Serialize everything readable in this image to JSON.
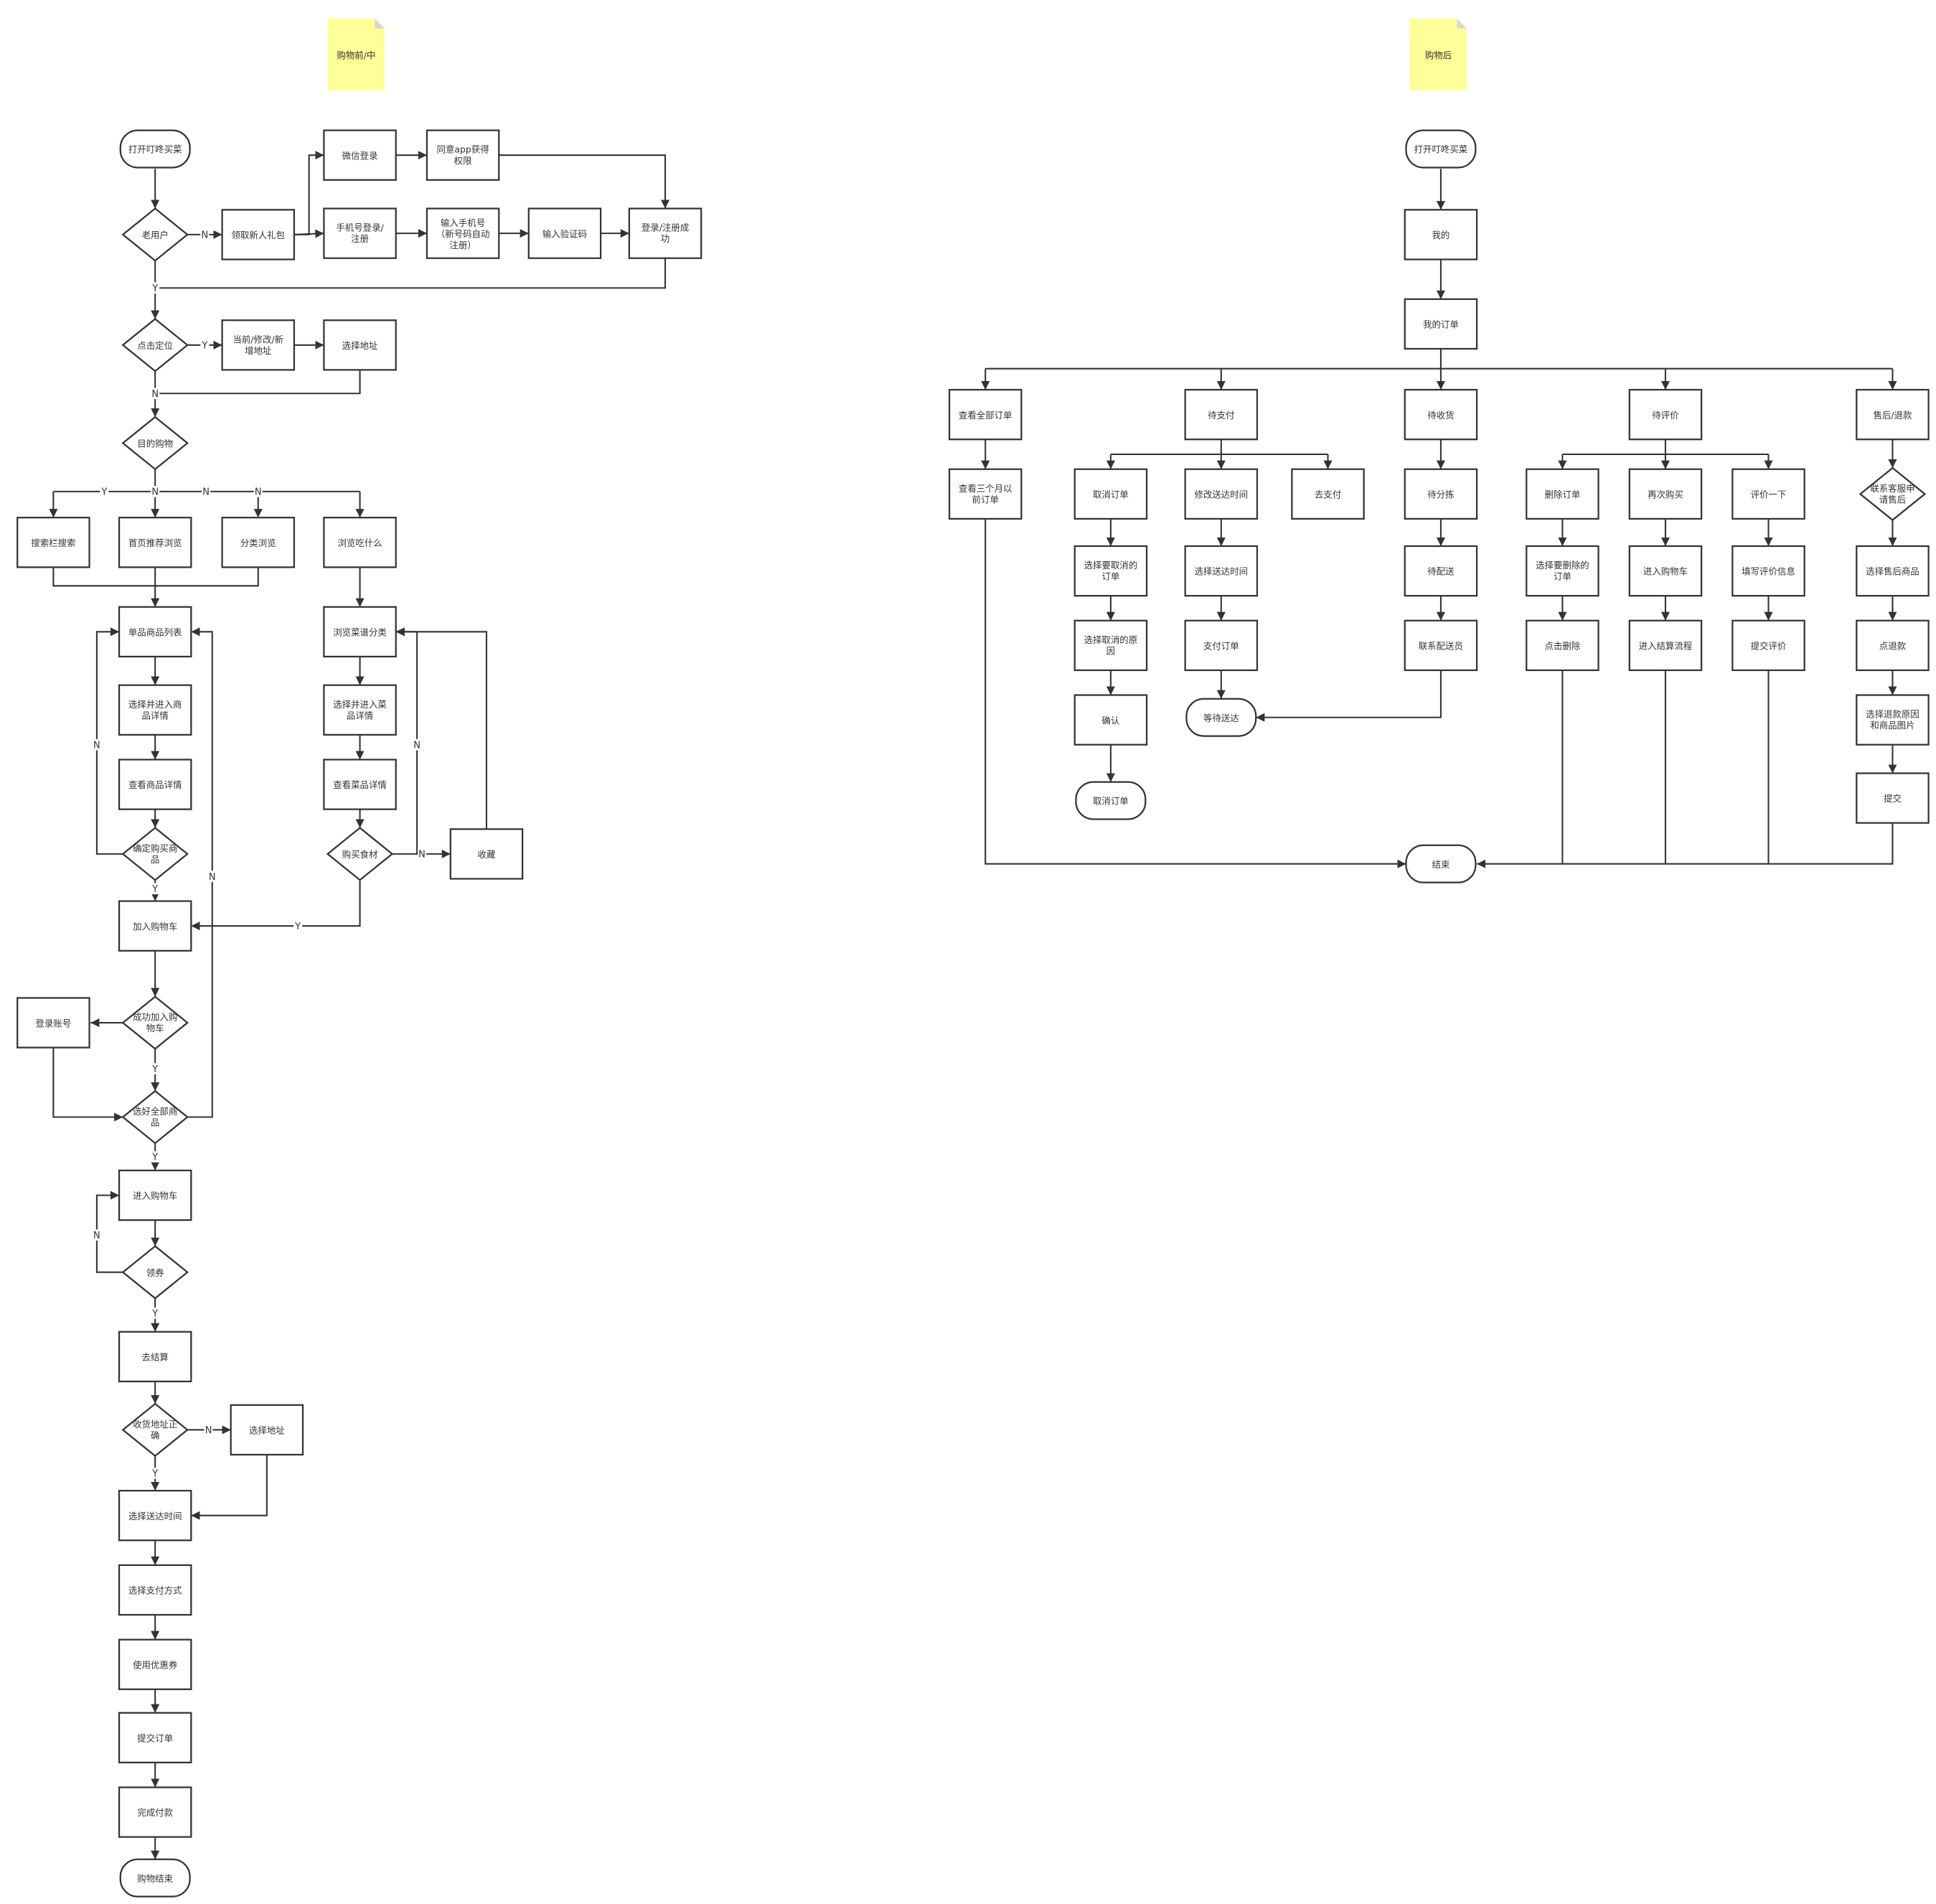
{
  "notes": {
    "before": "购物前/中",
    "after": "购物后"
  },
  "colors": {
    "line": "#333333",
    "note": "#ffff99",
    "note_fold": "#d8d8c8",
    "background": "#ffffff"
  },
  "edge_labels": {
    "yes": "Y",
    "no": "N"
  },
  "left_flow": {
    "open_app": "打开叮咚买菜",
    "old_user": "老用户",
    "new_gift": "领取新人礼包",
    "wechat_login": "微信登录",
    "agree_perm": "同意app获得\n权限",
    "phone_login": "手机号登录/\n注册",
    "input_phone": "输入手机号\n（新号码自动\n注册）",
    "input_code": "输入验证码",
    "login_ok": "登录/注册成\n功",
    "locate": "点击定位",
    "addr_edit": "当前/修改/新\n增地址",
    "choose_addr": "选择地址",
    "goal_shop": "目的购物",
    "search_bar": "搜索栏搜索",
    "home_rec": "首页推荐浏览",
    "category": "分类浏览",
    "what_eat": "浏览吃什么",
    "item_list": "单品商品列表",
    "choose_item": "选择并进入商\n品详情",
    "view_item": "查看商品详情",
    "confirm_buy": "确定购买商\n品",
    "add_cart": "加入购物车",
    "add_ok": "成功加入购\n物车",
    "login_acct": "登录账号",
    "all_chosen": "选好全部商\n品",
    "enter_cart": "进入购物车",
    "coupon": "领券",
    "checkout": "去结算",
    "addr_ok": "收货地址正\n确",
    "choose_addr2": "选择地址",
    "delivery_time": "选择送达时间",
    "pay_method": "选择支付方式",
    "use_coupon": "使用优惠券",
    "submit_order": "提交订单",
    "pay_done": "完成付款",
    "shop_end": "购物结束",
    "recipe_cat": "浏览菜谱分类",
    "choose_dish": "选择并进入菜\n品详情",
    "view_dish": "查看菜品详情",
    "buy_ingr": "购买食材",
    "favorite": "收藏"
  },
  "right_flow": {
    "open_app": "打开叮咚买菜",
    "mine": "我的",
    "my_orders": "我的订单",
    "all_orders": "查看全部订单",
    "to_pay": "待支付",
    "to_receive": "待收货",
    "to_review": "待评价",
    "after_sale": "售后/退款",
    "old_orders": "查看三个月以\n前订单",
    "cancel_order": "取消订单",
    "change_time": "修改送达时间",
    "go_pay": "去支付",
    "sorting": "待分拣",
    "del_order": "删除订单",
    "rebuy": "再次购买",
    "review": "评价一下",
    "contact_cs": "联系客服申\n请售后",
    "choose_cancel": "选择要取消的\n订单",
    "choose_time": "选择送达时间",
    "to_deliver": "待配送",
    "choose_del": "选择要删除的\n订单",
    "enter_cart": "进入购物车",
    "fill_review": "填写评价信息",
    "choose_as_item": "选择售后商品",
    "cancel_reason": "选择取消的原\n因",
    "pay_order": "支付订单",
    "contact_courier": "联系配送员",
    "click_del": "点击删除",
    "checkout_flow": "进入结算流程",
    "submit_review": "提交评价",
    "refund": "点退款",
    "confirm": "确认",
    "wait_delivery": "等待送达",
    "refund_reason": "选择退款原因\n和商品图片",
    "cancel_done": "取消订单",
    "submit": "提交",
    "end": "结束"
  }
}
